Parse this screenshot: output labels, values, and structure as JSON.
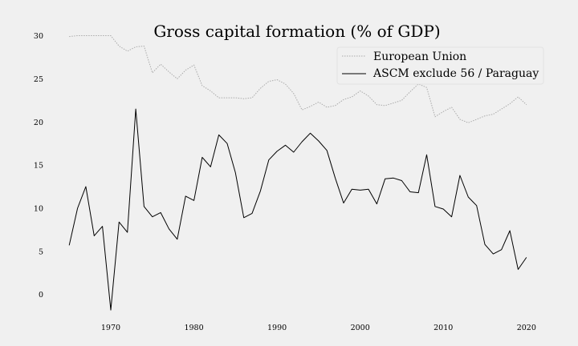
{
  "chart_data": {
    "type": "line",
    "title": "Gross capital formation (% of GDP)",
    "xlabel": "",
    "ylabel": "",
    "xlim": [
      1963,
      2022
    ],
    "ylim": [
      -3,
      32
    ],
    "xticks": [
      1970,
      1980,
      1990,
      2000,
      2010,
      2020
    ],
    "yticks": [
      0,
      5,
      10,
      15,
      20,
      25,
      30
    ],
    "grid": false,
    "legend_position": "top-right",
    "series": [
      {
        "name": "European Union",
        "color": "#aaaaaa",
        "style": "dotted",
        "x": [
          1965,
          1966,
          1967,
          1968,
          1969,
          1970,
          1971,
          1972,
          1973,
          1974,
          1975,
          1976,
          1977,
          1978,
          1979,
          1980,
          1981,
          1982,
          1983,
          1984,
          1985,
          1986,
          1987,
          1988,
          1989,
          1990,
          1991,
          1992,
          1993,
          1994,
          1995,
          1996,
          1997,
          1998,
          1999,
          2000,
          2001,
          2002,
          2003,
          2004,
          2005,
          2006,
          2007,
          2008,
          2009,
          2010,
          2011,
          2012,
          2013,
          2014,
          2015,
          2016,
          2017,
          2018,
          2019,
          2020
        ],
        "values": [
          29.9,
          30.0,
          30.0,
          30.0,
          30.0,
          30.0,
          28.8,
          28.2,
          28.7,
          28.8,
          25.7,
          26.7,
          25.8,
          25.0,
          26.0,
          26.6,
          24.2,
          23.6,
          22.8,
          22.8,
          22.8,
          22.7,
          22.8,
          23.9,
          24.7,
          24.9,
          24.4,
          23.3,
          21.4,
          21.8,
          22.3,
          21.7,
          21.9,
          22.6,
          22.9,
          23.6,
          23.0,
          22.0,
          21.9,
          22.2,
          22.5,
          23.5,
          24.4,
          24.0,
          20.6,
          21.2,
          21.7,
          20.3,
          19.9,
          20.3,
          20.7,
          20.9,
          21.5,
          22.1,
          22.9,
          22.0
        ]
      },
      {
        "name": "ASCM exclude 56 / Paraguay",
        "color": "#000000",
        "style": "solid",
        "x": [
          1965,
          1966,
          1967,
          1968,
          1969,
          1970,
          1971,
          1972,
          1973,
          1974,
          1975,
          1976,
          1977,
          1978,
          1979,
          1980,
          1981,
          1982,
          1983,
          1984,
          1985,
          1986,
          1987,
          1988,
          1989,
          1990,
          1991,
          1992,
          1993,
          1994,
          1995,
          1996,
          1997,
          1998,
          1999,
          2000,
          2001,
          2002,
          2003,
          2004,
          2005,
          2006,
          2007,
          2008,
          2009,
          2010,
          2011,
          2012,
          2013,
          2014,
          2015,
          2016,
          2017,
          2018,
          2019,
          2020
        ],
        "values": [
          5.7,
          10.0,
          12.5,
          6.8,
          7.9,
          -1.8,
          8.4,
          7.2,
          21.5,
          10.2,
          9.0,
          9.5,
          7.6,
          6.4,
          11.4,
          10.9,
          15.9,
          14.8,
          18.5,
          17.5,
          14.1,
          8.9,
          9.4,
          12.0,
          15.6,
          16.6,
          17.3,
          16.5,
          17.7,
          18.7,
          17.8,
          16.7,
          13.5,
          10.6,
          12.2,
          12.1,
          12.2,
          10.5,
          13.4,
          13.5,
          13.2,
          11.9,
          11.8,
          16.2,
          10.2,
          9.9,
          9.0,
          13.8,
          11.3,
          10.3,
          5.8,
          4.7,
          5.2,
          7.4,
          2.9,
          4.3
        ]
      }
    ]
  }
}
